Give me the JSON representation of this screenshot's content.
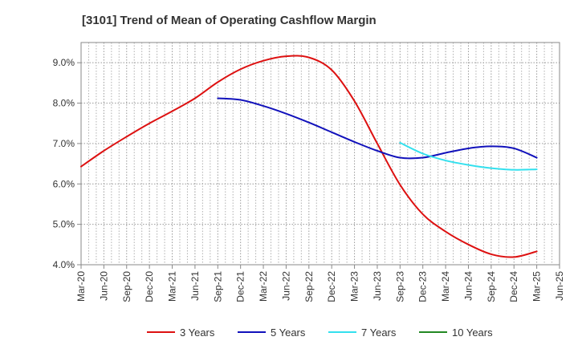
{
  "chart_data": {
    "type": "line",
    "title": "[3101]  Trend of Mean of Operating Cashflow Margin",
    "xlabel": "",
    "ylabel": "",
    "ylim": [
      4.0,
      9.5
    ],
    "y_ticks": [
      4.0,
      5.0,
      6.0,
      7.0,
      8.0,
      9.0
    ],
    "y_tick_labels": [
      "4.0%",
      "5.0%",
      "6.0%",
      "7.0%",
      "8.0%",
      "9.0%"
    ],
    "x_ticks": [
      "Mar-20",
      "Jun-20",
      "Sep-20",
      "Dec-20",
      "Mar-21",
      "Jun-21",
      "Sep-21",
      "Dec-21",
      "Mar-22",
      "Jun-22",
      "Sep-22",
      "Dec-22",
      "Mar-23",
      "Jun-23",
      "Sep-23",
      "Dec-23",
      "Mar-24",
      "Jun-24",
      "Sep-24",
      "Dec-24",
      "Mar-25",
      "Jun-25"
    ],
    "grid": true,
    "legend_position": "bottom",
    "series": [
      {
        "name": "3 Years",
        "color": "#dd1111",
        "start_index": 0,
        "values": [
          6.43,
          6.82,
          7.17,
          7.5,
          7.8,
          8.12,
          8.52,
          8.84,
          9.05,
          9.16,
          9.13,
          8.82,
          8.05,
          7.0,
          5.98,
          5.25,
          4.82,
          4.5,
          4.26,
          4.19,
          4.33
        ]
      },
      {
        "name": "5 Years",
        "color": "#1111bb",
        "start_index": 6,
        "values": [
          8.12,
          8.08,
          7.93,
          7.74,
          7.52,
          7.28,
          7.04,
          6.82,
          6.65,
          6.65,
          6.77,
          6.88,
          6.93,
          6.88,
          6.65
        ]
      },
      {
        "name": "7 Years",
        "color": "#33e0ee",
        "start_index": 14,
        "values": [
          7.02,
          6.75,
          6.58,
          6.47,
          6.39,
          6.35,
          6.36
        ]
      },
      {
        "name": "10 Years",
        "color": "#228822",
        "start_index": 0,
        "values": []
      }
    ]
  }
}
